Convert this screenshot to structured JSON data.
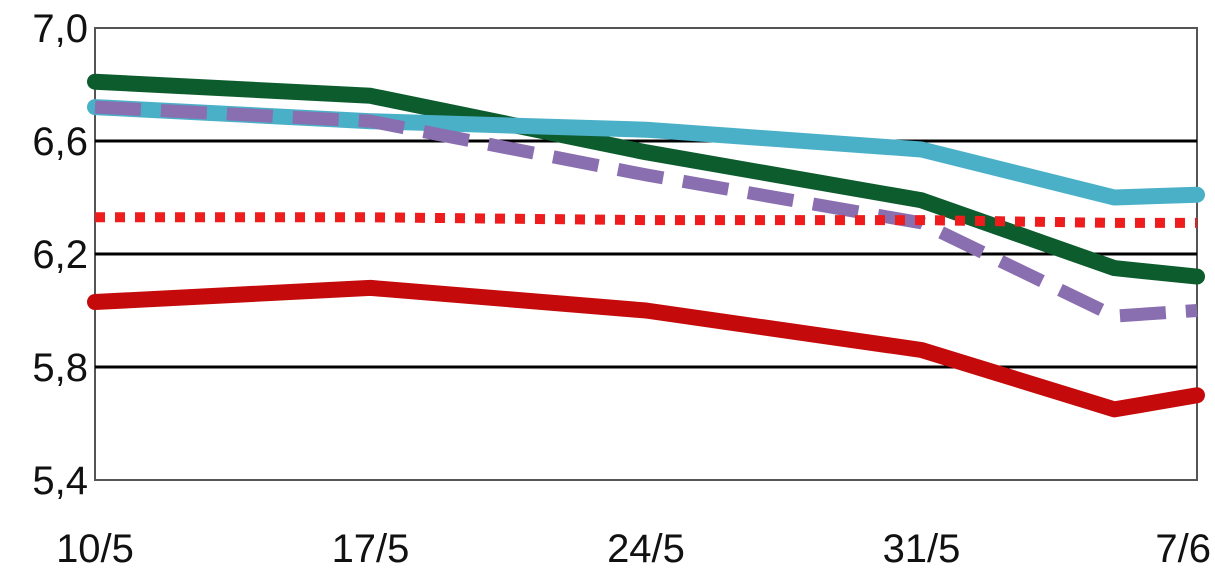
{
  "chart_data": {
    "type": "line",
    "title": "",
    "xlabel": "",
    "ylabel": "",
    "x_tick_labels": [
      "10/5",
      "17/5",
      "24/5",
      "31/5",
      "7/6"
    ],
    "y_tick_labels": [
      "7,0",
      "6,6",
      "6,2",
      "5,8",
      "5,4"
    ],
    "ylim": [
      5.4,
      7.0
    ],
    "grid": "horizontal",
    "series": [
      {
        "color": "#0d5c2e",
        "style": "solid",
        "points": [
          [
            0,
            6.81
          ],
          [
            1,
            6.76
          ],
          [
            2.0,
            6.56
          ],
          [
            3.0,
            6.39
          ],
          [
            3.7,
            6.15
          ],
          [
            4,
            6.12
          ]
        ]
      },
      {
        "color": "#4ab0c8",
        "style": "solid",
        "points": [
          [
            0,
            6.72
          ],
          [
            1,
            6.67
          ],
          [
            2.0,
            6.64
          ],
          [
            3.0,
            6.57
          ],
          [
            3.7,
            6.4
          ],
          [
            4,
            6.41
          ]
        ]
      },
      {
        "color": "#8a6fb0",
        "style": "dashed",
        "points": [
          [
            0,
            6.72
          ],
          [
            1,
            6.67
          ],
          [
            2.0,
            6.48
          ],
          [
            3.0,
            6.31
          ],
          [
            3.7,
            5.98
          ],
          [
            4,
            6.0
          ]
        ]
      },
      {
        "color": "#ee1c1c",
        "style": "dotted",
        "points": [
          [
            0,
            6.33
          ],
          [
            1,
            6.33
          ],
          [
            2.0,
            6.32
          ],
          [
            3.0,
            6.32
          ],
          [
            3.7,
            6.31
          ],
          [
            4,
            6.31
          ]
        ]
      },
      {
        "color": "#c40a0a",
        "style": "solid",
        "points": [
          [
            0,
            6.03
          ],
          [
            1,
            6.08
          ],
          [
            2.0,
            6.0
          ],
          [
            3.0,
            5.86
          ],
          [
            3.7,
            5.65
          ],
          [
            4,
            5.7
          ]
        ]
      }
    ]
  }
}
